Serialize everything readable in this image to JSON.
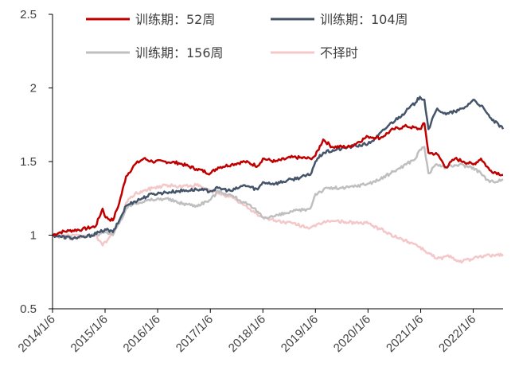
{
  "chart_data": {
    "type": "line",
    "title": "",
    "xlabel": "",
    "ylabel": "",
    "ylim": [
      0.5,
      2.5
    ],
    "yticks": [
      "0.5",
      "1",
      "1.5",
      "2",
      "2.5"
    ],
    "xticks": [
      "2014/1/6",
      "2015/1/6",
      "2016/1/6",
      "2017/1/6",
      "2018/1/6",
      "2019/1/6",
      "2020/1/6",
      "2021/1/6",
      "2022/1/6"
    ],
    "x_start": "2014/1/6",
    "x_end": "2022/8/1",
    "legend_position": "top",
    "grid": false,
    "series": [
      {
        "name": "训练期：52周",
        "color": "#C00000",
        "points": [
          [
            "2014/1/6",
            1.0
          ],
          [
            "2014/3/1",
            1.02
          ],
          [
            "2014/5/1",
            1.03
          ],
          [
            "2014/8/1",
            1.04
          ],
          [
            "2014/11/1",
            1.06
          ],
          [
            "2014/12/20",
            1.18
          ],
          [
            "2015/1/10",
            1.12
          ],
          [
            "2015/3/1",
            1.1
          ],
          [
            "2015/4/15",
            1.22
          ],
          [
            "2015/6/1",
            1.4
          ],
          [
            "2015/8/1",
            1.48
          ],
          [
            "2015/10/1",
            1.52
          ],
          [
            "2015/12/1",
            1.5
          ],
          [
            "2016/3/1",
            1.5
          ],
          [
            "2016/6/1",
            1.49
          ],
          [
            "2016/10/1",
            1.45
          ],
          [
            "2017/1/6",
            1.42
          ],
          [
            "2017/3/1",
            1.46
          ],
          [
            "2017/6/1",
            1.48
          ],
          [
            "2017/9/1",
            1.5
          ],
          [
            "2017/12/1",
            1.47
          ],
          [
            "2018/1/6",
            1.52
          ],
          [
            "2018/4/1",
            1.5
          ],
          [
            "2018/8/1",
            1.53
          ],
          [
            "2018/12/1",
            1.52
          ],
          [
            "2019/1/6",
            1.54
          ],
          [
            "2019/3/1",
            1.65
          ],
          [
            "2019/5/1",
            1.6
          ],
          [
            "2019/9/1",
            1.6
          ],
          [
            "2020/1/6",
            1.67
          ],
          [
            "2020/4/1",
            1.66
          ],
          [
            "2020/7/1",
            1.72
          ],
          [
            "2020/10/1",
            1.74
          ],
          [
            "2021/1/1",
            1.72
          ],
          [
            "2021/2/1",
            1.76
          ],
          [
            "2021/3/1",
            1.56
          ],
          [
            "2021/5/1",
            1.55
          ],
          [
            "2021/7/1",
            1.46
          ],
          [
            "2021/9/1",
            1.52
          ],
          [
            "2021/11/1",
            1.5
          ],
          [
            "2022/1/6",
            1.48
          ],
          [
            "2022/3/1",
            1.52
          ],
          [
            "2022/5/1",
            1.44
          ],
          [
            "2022/8/1",
            1.41
          ]
        ]
      },
      {
        "name": "训练期：104周",
        "color": "#44546A",
        "points": [
          [
            "2014/1/6",
            1.0
          ],
          [
            "2014/3/1",
            0.99
          ],
          [
            "2014/6/1",
            0.98
          ],
          [
            "2014/9/1",
            0.99
          ],
          [
            "2014/12/1",
            1.02
          ],
          [
            "2015/1/6",
            1.04
          ],
          [
            "2015/3/1",
            1.02
          ],
          [
            "2015/4/15",
            1.1
          ],
          [
            "2015/6/1",
            1.2
          ],
          [
            "2015/8/1",
            1.23
          ],
          [
            "2015/12/1",
            1.28
          ],
          [
            "2016/3/1",
            1.29
          ],
          [
            "2016/6/1",
            1.3
          ],
          [
            "2016/10/1",
            1.31
          ],
          [
            "2017/1/6",
            1.3
          ],
          [
            "2017/3/1",
            1.32
          ],
          [
            "2017/6/1",
            1.3
          ],
          [
            "2017/9/1",
            1.34
          ],
          [
            "2017/12/1",
            1.31
          ],
          [
            "2018/1/6",
            1.36
          ],
          [
            "2018/4/1",
            1.35
          ],
          [
            "2018/8/1",
            1.38
          ],
          [
            "2018/12/1",
            1.41
          ],
          [
            "2019/1/6",
            1.5
          ],
          [
            "2019/3/1",
            1.56
          ],
          [
            "2019/6/1",
            1.58
          ],
          [
            "2019/9/1",
            1.6
          ],
          [
            "2020/1/6",
            1.62
          ],
          [
            "2020/3/1",
            1.66
          ],
          [
            "2020/6/1",
            1.75
          ],
          [
            "2020/9/1",
            1.82
          ],
          [
            "2020/12/1",
            1.9
          ],
          [
            "2021/1/1",
            1.94
          ],
          [
            "2021/2/1",
            1.92
          ],
          [
            "2021/3/1",
            1.72
          ],
          [
            "2021/5/1",
            1.86
          ],
          [
            "2021/7/1",
            1.82
          ],
          [
            "2021/9/1",
            1.84
          ],
          [
            "2021/11/1",
            1.86
          ],
          [
            "2022/1/6",
            1.92
          ],
          [
            "2022/3/1",
            1.88
          ],
          [
            "2022/5/1",
            1.8
          ],
          [
            "2022/8/1",
            1.72
          ]
        ]
      },
      {
        "name": "训练期：156周",
        "color": "#BFBFBF",
        "points": [
          [
            "2014/1/6",
            1.0
          ],
          [
            "2014/3/1",
            0.99
          ],
          [
            "2014/6/1",
            0.98
          ],
          [
            "2014/9/1",
            0.99
          ],
          [
            "2014/12/1",
            1.01
          ],
          [
            "2015/1/6",
            1.03
          ],
          [
            "2015/3/1",
            1.0
          ],
          [
            "2015/4/15",
            1.08
          ],
          [
            "2015/6/1",
            1.18
          ],
          [
            "2015/8/1",
            1.22
          ],
          [
            "2015/12/1",
            1.24
          ],
          [
            "2016/3/1",
            1.25
          ],
          [
            "2016/6/1",
            1.22
          ],
          [
            "2016/10/1",
            1.2
          ],
          [
            "2017/1/6",
            1.24
          ],
          [
            "2017/3/1",
            1.3
          ],
          [
            "2017/6/1",
            1.27
          ],
          [
            "2017/9/1",
            1.22
          ],
          [
            "2017/12/1",
            1.16
          ],
          [
            "2018/1/6",
            1.12
          ],
          [
            "2018/4/1",
            1.13
          ],
          [
            "2018/8/1",
            1.16
          ],
          [
            "2018/12/1",
            1.18
          ],
          [
            "2019/1/6",
            1.28
          ],
          [
            "2019/4/1",
            1.32
          ],
          [
            "2019/8/1",
            1.32
          ],
          [
            "2020/1/6",
            1.35
          ],
          [
            "2020/4/1",
            1.38
          ],
          [
            "2020/8/1",
            1.45
          ],
          [
            "2020/12/1",
            1.52
          ],
          [
            "2021/1/1",
            1.58
          ],
          [
            "2021/2/1",
            1.6
          ],
          [
            "2021/3/1",
            1.42
          ],
          [
            "2021/5/1",
            1.48
          ],
          [
            "2021/7/1",
            1.46
          ],
          [
            "2021/10/1",
            1.48
          ],
          [
            "2022/1/6",
            1.46
          ],
          [
            "2022/3/1",
            1.42
          ],
          [
            "2022/5/1",
            1.36
          ],
          [
            "2022/8/1",
            1.38
          ]
        ]
      },
      {
        "name": "不择时",
        "color": "#F4C7C9",
        "points": [
          [
            "2014/1/6",
            1.0
          ],
          [
            "2014/4/1",
            1.0
          ],
          [
            "2014/8/1",
            0.99
          ],
          [
            "2014/11/1",
            1.0
          ],
          [
            "2014/12/20",
            0.93
          ],
          [
            "2015/2/1",
            0.98
          ],
          [
            "2015/4/15",
            1.08
          ],
          [
            "2015/6/1",
            1.22
          ],
          [
            "2015/8/1",
            1.28
          ],
          [
            "2015/12/1",
            1.32
          ],
          [
            "2016/3/1",
            1.34
          ],
          [
            "2016/6/1",
            1.33
          ],
          [
            "2016/10/1",
            1.34
          ],
          [
            "2017/1/6",
            1.3
          ],
          [
            "2017/4/1",
            1.28
          ],
          [
            "2017/7/1",
            1.24
          ],
          [
            "2017/10/1",
            1.18
          ],
          [
            "2018/1/6",
            1.12
          ],
          [
            "2018/4/1",
            1.1
          ],
          [
            "2018/8/1",
            1.08
          ],
          [
            "2018/12/1",
            1.05
          ],
          [
            "2019/1/6",
            1.06
          ],
          [
            "2019/4/1",
            1.1
          ],
          [
            "2019/8/1",
            1.09
          ],
          [
            "2020/1/6",
            1.08
          ],
          [
            "2020/4/1",
            1.04
          ],
          [
            "2020/8/1",
            0.98
          ],
          [
            "2020/12/1",
            0.94
          ],
          [
            "2021/3/1",
            0.88
          ],
          [
            "2021/5/1",
            0.84
          ],
          [
            "2021/8/1",
            0.86
          ],
          [
            "2021/10/1",
            0.82
          ],
          [
            "2022/1/6",
            0.84
          ],
          [
            "2022/4/1",
            0.86
          ],
          [
            "2022/8/1",
            0.87
          ]
        ]
      }
    ]
  }
}
